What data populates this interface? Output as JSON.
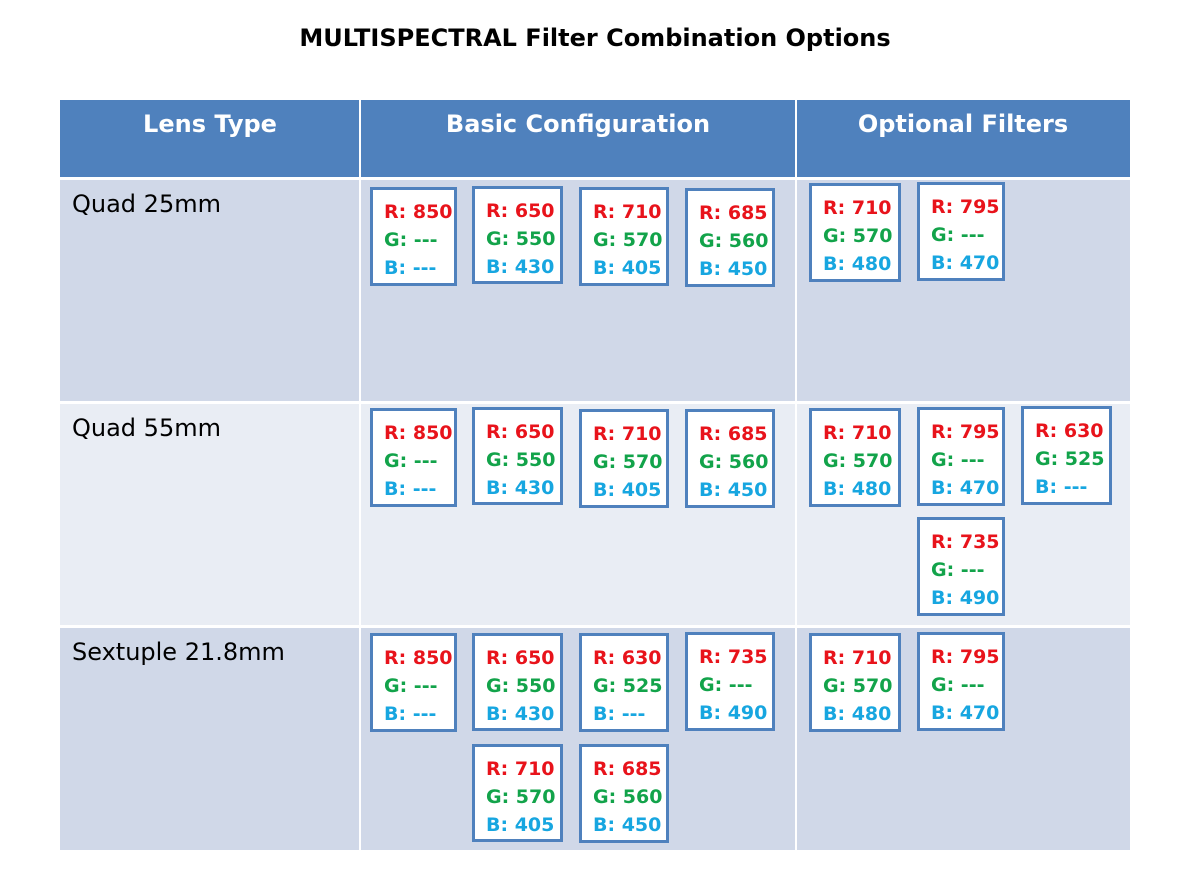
{
  "title": "MULTISPECTRAL Filter Combination Options",
  "headers": [
    "Lens Type",
    "Basic Configuration",
    "Optional Filters"
  ],
  "rows": [
    {
      "lens": "Quad 25mm",
      "basic": [
        {
          "r": "R: 850",
          "g": "G: ---",
          "b": "B: ---"
        },
        {
          "r": "R: 650",
          "g": "G: 550",
          "b": "B: 430"
        },
        {
          "r": "R: 710",
          "g": "G: 570",
          "b": "B: 405"
        },
        {
          "r": "R: 685",
          "g": "G: 560",
          "b": "B: 450"
        }
      ],
      "optional": [
        {
          "r": "R: 710",
          "g": "G: 570",
          "b": "B: 480"
        },
        {
          "r": "R: 795",
          "g": "G: ---",
          "b": "B: 470"
        }
      ]
    },
    {
      "lens": "Quad 55mm",
      "basic": [
        {
          "r": "R: 850",
          "g": "G: ---",
          "b": "B: ---"
        },
        {
          "r": "R: 650",
          "g": "G: 550",
          "b": "B: 430"
        },
        {
          "r": "R: 710",
          "g": "G: 570",
          "b": "B: 405"
        },
        {
          "r": "R: 685",
          "g": "G: 560",
          "b": "B: 450"
        }
      ],
      "optional": [
        {
          "r": "R: 710",
          "g": "G: 570",
          "b": "B: 480"
        },
        {
          "r": "R: 795",
          "g": "G: ---",
          "b": "B: 470"
        },
        {
          "r": "R: 630",
          "g": "G: 525",
          "b": "B: ---"
        },
        {
          "r": "R: 735",
          "g": "G: ---",
          "b": "B: 490"
        }
      ]
    },
    {
      "lens": "Sextuple 21.8mm",
      "basic": [
        {
          "r": "R: 850",
          "g": "G: ---",
          "b": "B: ---"
        },
        {
          "r": "R: 650",
          "g": "G: 550",
          "b": "B: 430"
        },
        {
          "r": "R: 630",
          "g": "G: 525",
          "b": "B: ---"
        },
        {
          "r": "R: 735",
          "g": "G: ---",
          "b": "B: 490"
        },
        {
          "r": "R: 710",
          "g": "G: 570",
          "b": "B: 405"
        },
        {
          "r": "R: 685",
          "g": "G: 560",
          "b": "B: 450"
        }
      ],
      "optional": [
        {
          "r": "R: 710",
          "g": "G: 570",
          "b": "B: 480"
        },
        {
          "r": "R: 795",
          "g": "G: ---",
          "b": "B: 470"
        }
      ]
    }
  ]
}
